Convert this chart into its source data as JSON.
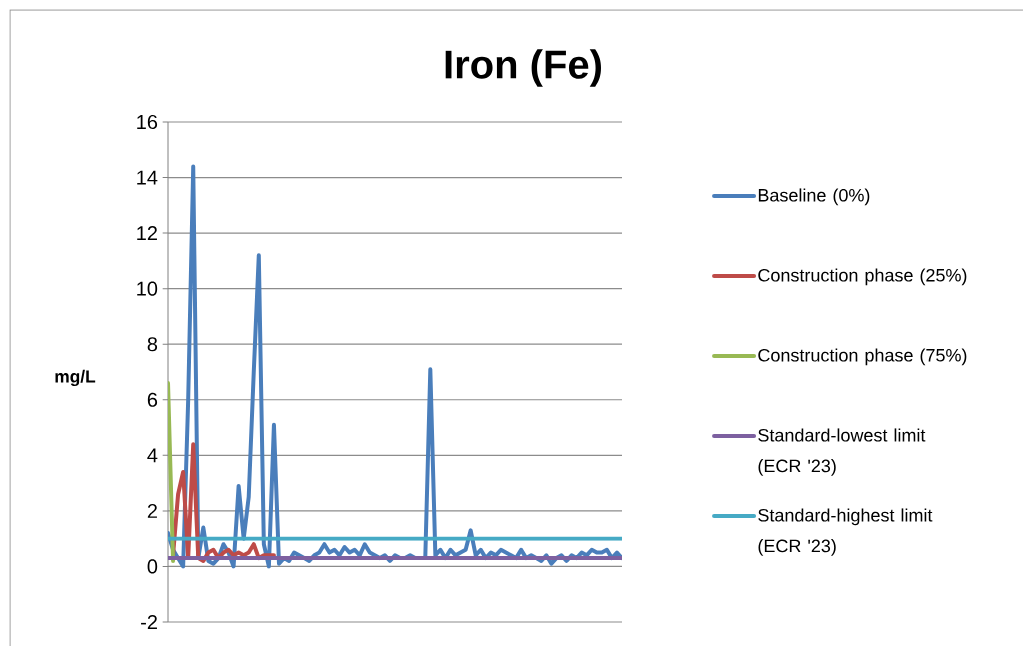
{
  "chart_data": {
    "type": "line",
    "title": "Iron (Fe)",
    "ylabel": "mg/L",
    "categories": [
      null,
      null,
      null,
      null,
      null,
      null,
      null,
      null,
      null,
      null,
      null,
      null,
      null,
      null,
      null,
      null,
      null,
      null,
      null,
      null,
      null,
      null,
      null,
      null,
      null,
      null,
      null,
      null,
      null,
      null,
      null,
      null,
      null,
      null,
      null,
      null,
      null,
      null,
      null,
      null,
      null,
      null,
      null,
      null,
      null,
      null,
      null,
      null,
      null,
      null,
      null,
      null,
      null,
      null,
      null,
      null,
      null,
      null,
      null,
      null,
      null,
      null,
      null,
      null,
      null,
      null,
      null,
      null,
      null,
      null,
      null,
      null,
      null,
      null,
      null,
      null,
      null,
      null,
      null,
      null,
      null,
      null,
      null,
      null,
      null,
      null,
      null,
      null,
      null,
      null,
      null
    ],
    "series": [
      {
        "name": "Baseline (0%)",
        "color": "#4a7ebb",
        "values": [
          1.2,
          0.6,
          0.3,
          0,
          6,
          14.4,
          0.3,
          1.4,
          0.2,
          0.1,
          0.3,
          0.8,
          0.5,
          0,
          2.9,
          1.0,
          2.5,
          7,
          11.2,
          0.8,
          0,
          5.1,
          0.1,
          0.3,
          0.2,
          0.5,
          0.4,
          0.3,
          0.2,
          0.4,
          0.5,
          0.8,
          0.5,
          0.6,
          0.4,
          0.7,
          0.5,
          0.6,
          0.4,
          0.8,
          0.5,
          0.4,
          0.3,
          0.4,
          0.2,
          0.4,
          0.3,
          0.3,
          0.4,
          0.3,
          0.3,
          0.3,
          7.1,
          0.4,
          0.6,
          0.3,
          0.6,
          0.4,
          0.5,
          0.6,
          1.3,
          0.4,
          0.6,
          0.3,
          0.5,
          0.4,
          0.6,
          0.5,
          0.4,
          0.3,
          0.6,
          0.3,
          0.4,
          0.3,
          0.2,
          0.4,
          0.1,
          0.3,
          0.4,
          0.2,
          0.4,
          0.3,
          0.5,
          0.4,
          0.6,
          0.5,
          0.5,
          0.6,
          0.3,
          0.5,
          0.3
        ]
      },
      {
        "name": "Construction phase (25%)",
        "color": "#be4b48",
        "values": [
          null,
          0.4,
          2.6,
          3.4,
          0.3,
          4.4,
          0.3,
          0.2,
          0.5,
          0.6,
          0.3,
          0.5,
          0.6,
          0.4,
          0.5,
          0.4,
          0.5,
          0.8,
          0.3,
          0.4,
          0.4,
          0.4,
          null,
          null,
          null,
          null,
          null,
          null,
          null,
          null,
          null,
          null,
          null,
          null,
          null,
          null,
          null,
          null,
          null,
          null,
          null,
          null,
          null,
          null,
          null,
          null,
          null,
          null,
          null,
          null,
          null,
          null,
          null,
          null,
          null,
          null,
          null,
          null,
          null,
          null,
          null,
          null,
          null,
          null,
          null,
          null,
          null,
          null,
          null,
          null,
          null,
          null,
          null,
          null,
          null,
          null,
          null,
          null,
          null,
          null,
          null,
          null,
          null,
          null,
          null,
          null,
          null,
          null,
          null,
          null,
          null
        ]
      },
      {
        "name": "Construction phase (75%)",
        "color": "#98b954",
        "values": [
          6.6,
          0.2,
          null,
          null,
          null,
          null,
          null,
          null,
          null,
          null,
          null,
          null,
          null,
          null,
          null,
          null,
          null,
          null,
          null,
          null,
          null,
          null,
          null,
          null,
          null,
          null,
          null,
          null,
          null,
          null,
          null,
          null,
          null,
          null,
          null,
          null,
          null,
          null,
          null,
          null,
          null,
          null,
          null,
          null,
          null,
          null,
          null,
          null,
          null,
          null,
          null,
          null,
          null,
          null,
          null,
          null,
          null,
          null,
          null,
          null,
          null,
          null,
          null,
          null,
          null,
          null,
          null,
          null,
          null,
          null,
          null,
          null,
          null,
          null,
          null,
          null,
          null,
          null,
          null,
          null,
          null,
          null,
          null,
          null,
          null,
          null,
          null,
          null,
          null,
          null,
          null
        ]
      },
      {
        "name": "Standard-lowest limit (ECR '23)",
        "color": "#7d60a0",
        "values": [
          0.3,
          0.3,
          0.3,
          0.3,
          0.3,
          0.3,
          0.3,
          0.3,
          0.3,
          0.3,
          0.3,
          0.3,
          0.3,
          0.3,
          0.3,
          0.3,
          0.3,
          0.3,
          0.3,
          0.3,
          0.3,
          0.3,
          0.3,
          0.3,
          0.3,
          0.3,
          0.3,
          0.3,
          0.3,
          0.3,
          0.3,
          0.3,
          0.3,
          0.3,
          0.3,
          0.3,
          0.3,
          0.3,
          0.3,
          0.3,
          0.3,
          0.3,
          0.3,
          0.3,
          0.3,
          0.3,
          0.3,
          0.3,
          0.3,
          0.3,
          0.3,
          0.3,
          0.3,
          0.3,
          0.3,
          0.3,
          0.3,
          0.3,
          0.3,
          0.3,
          0.3,
          0.3,
          0.3,
          0.3,
          0.3,
          0.3,
          0.3,
          0.3,
          0.3,
          0.3,
          0.3,
          0.3,
          0.3,
          0.3,
          0.3,
          0.3,
          0.3,
          0.3,
          0.3,
          0.3,
          0.3,
          0.3,
          0.3,
          0.3,
          0.3,
          0.3,
          0.3,
          0.3,
          0.3,
          0.3,
          0.3
        ]
      },
      {
        "name": "Standard-highest limit (ECR '23)",
        "color": "#46aac5",
        "values": [
          1.0,
          1.0,
          1.0,
          1.0,
          1.0,
          1.0,
          1.0,
          1.0,
          1.0,
          1.0,
          1.0,
          1.0,
          1.0,
          1.0,
          1.0,
          1.0,
          1.0,
          1.0,
          1.0,
          1.0,
          1.0,
          1.0,
          1.0,
          1.0,
          1.0,
          1.0,
          1.0,
          1.0,
          1.0,
          1.0,
          1.0,
          1.0,
          1.0,
          1.0,
          1.0,
          1.0,
          1.0,
          1.0,
          1.0,
          1.0,
          1.0,
          1.0,
          1.0,
          1.0,
          1.0,
          1.0,
          1.0,
          1.0,
          1.0,
          1.0,
          1.0,
          1.0,
          1.0,
          1.0,
          1.0,
          1.0,
          1.0,
          1.0,
          1.0,
          1.0,
          1.0,
          1.0,
          1.0,
          1.0,
          1.0,
          1.0,
          1.0,
          1.0,
          1.0,
          1.0,
          1.0,
          1.0,
          1.0,
          1.0,
          1.0,
          1.0,
          1.0,
          1.0,
          1.0,
          1.0,
          1.0,
          1.0,
          1.0,
          1.0,
          1.0,
          1.0,
          1.0,
          1.0,
          1.0,
          1.0,
          1.0
        ]
      }
    ],
    "ylim": [
      -2,
      16
    ],
    "yticks": [
      -2,
      0,
      2,
      4,
      6,
      8,
      10,
      12,
      14,
      16
    ],
    "grid": "y",
    "legend": "right",
    "marker": "none",
    "line_style": "solid"
  }
}
